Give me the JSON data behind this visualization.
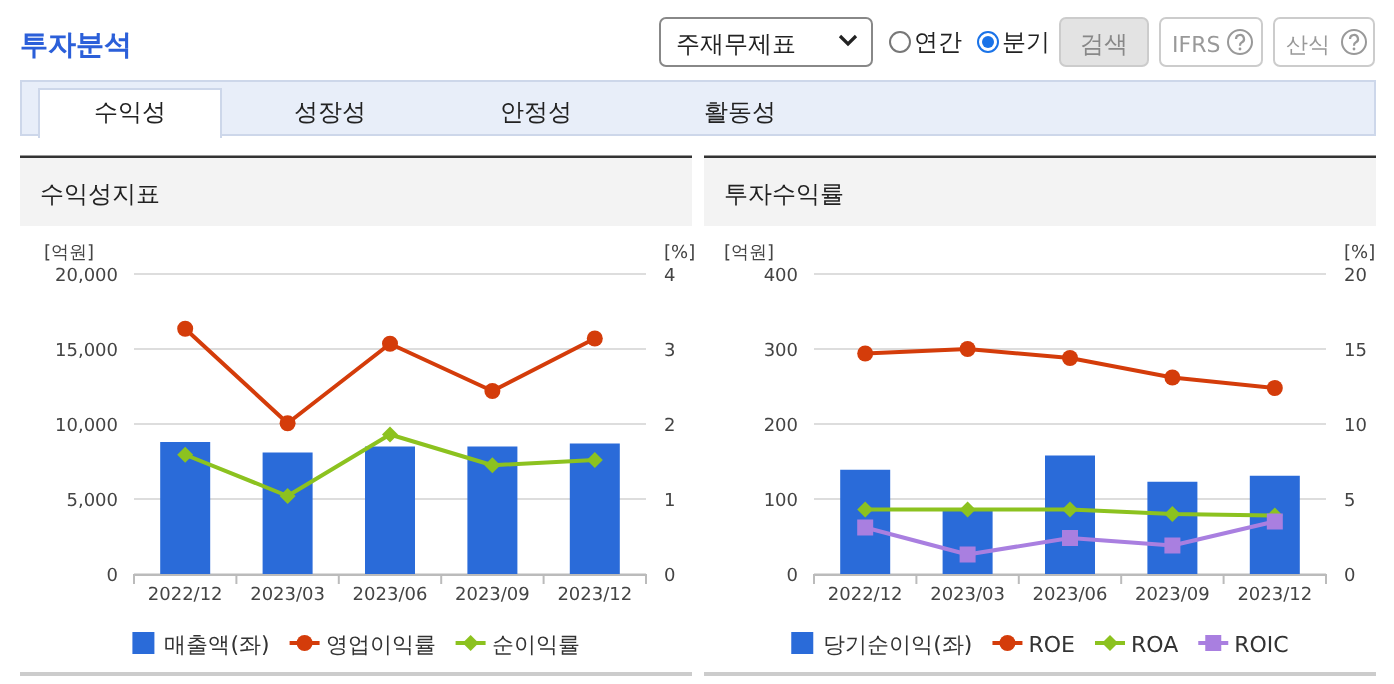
{
  "chart_data": [
    {
      "type": "other",
      "title": "투자분석",
      "annotations": [
        "주재무제표",
        "연간",
        "분기",
        "검색",
        "IFRS",
        "산식",
        "수익성",
        "성장성",
        "안정성",
        "활동성"
      ]
    },
    {
      "type": "bar",
      "title": "수익성지표",
      "ylabel": "[억원]",
      "y2label": "[%]",
      "categories": [
        "2022/12",
        "2023/03",
        "2023/06",
        "2023/09",
        "2023/12"
      ],
      "ylim": [
        0,
        20000
      ],
      "yticks": [
        {
          "value": 0,
          "label": "0"
        },
        {
          "value": 5000,
          "label": "5,000"
        },
        {
          "value": 10000,
          "label": "10,000"
        },
        {
          "value": 15000,
          "label": "15,000"
        },
        {
          "value": 20000,
          "label": "20,000"
        }
      ],
      "y2lim": [
        0,
        4
      ],
      "y2ticks": [
        0,
        1,
        2,
        3,
        4
      ],
      "grid": "y",
      "legend": "bottom",
      "series": [
        {
          "name": "매출액(좌)",
          "type": "bar",
          "color": "#2a6bd9",
          "values": [
            8800,
            8100,
            8500,
            8500,
            8700
          ]
        },
        {
          "name": "영업이익률",
          "type": "line",
          "axis": "y2",
          "marker": "circle",
          "color": "#d43c0a",
          "values": [
            3.27,
            2.01,
            3.07,
            2.44,
            3.14
          ]
        },
        {
          "name": "순이익률",
          "type": "line",
          "axis": "y2",
          "marker": "diamond",
          "color": "#8cc21f",
          "values": [
            1.59,
            1.04,
            1.86,
            1.45,
            1.52
          ]
        }
      ]
    },
    {
      "type": "bar",
      "title": "투자수익률",
      "ylabel": "[억원]",
      "y2label": "[%]",
      "categories": [
        "2022/12",
        "2023/03",
        "2023/06",
        "2023/09",
        "2023/12"
      ],
      "ylim": [
        0,
        400
      ],
      "yticks": [
        0,
        100,
        200,
        300,
        400
      ],
      "y2lim": [
        0,
        20
      ],
      "y2ticks": [
        0,
        5,
        10,
        15,
        20
      ],
      "grid": "y",
      "legend": "bottom",
      "series": [
        {
          "name": "당기순이익(좌)",
          "type": "bar",
          "color": "#2a6bd9",
          "values": [
            139,
            84,
            158,
            123,
            131
          ]
        },
        {
          "name": "ROE",
          "type": "line",
          "axis": "y2",
          "marker": "circle",
          "color": "#d43c0a",
          "values": [
            14.7,
            15.0,
            14.4,
            13.1,
            12.4
          ]
        },
        {
          "name": "ROA",
          "type": "line",
          "axis": "y2",
          "marker": "diamond",
          "color": "#8cc21f",
          "values": [
            4.3,
            4.3,
            4.3,
            4.0,
            3.9
          ]
        },
        {
          "name": "ROIC",
          "type": "line",
          "axis": "y2",
          "marker": "square",
          "color": "#a97fe0",
          "values": [
            3.1,
            1.3,
            2.4,
            1.9,
            3.5
          ]
        }
      ]
    }
  ]
}
